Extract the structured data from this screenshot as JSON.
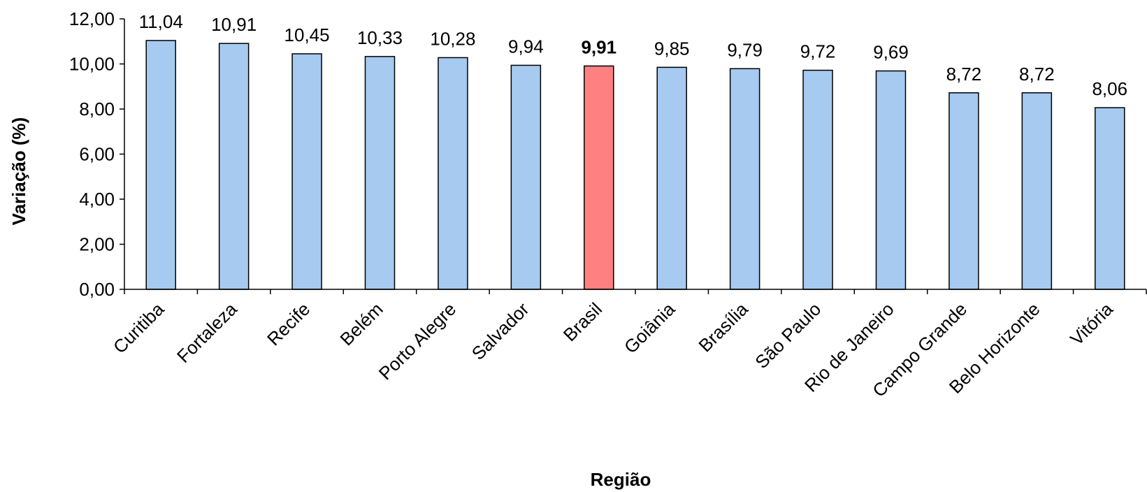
{
  "chart_data": {
    "type": "bar",
    "title": "",
    "xlabel": "Região",
    "ylabel": "Variação (%)",
    "ylim": [
      0,
      12
    ],
    "yticks": [
      "0,00",
      "2,00",
      "4,00",
      "6,00",
      "8,00",
      "10,00",
      "12,00"
    ],
    "grid": false,
    "categories": [
      "Curitiba",
      "Fortaleza",
      "Recife",
      "Belém",
      "Porto Alegre",
      "Salvador",
      "Brasil",
      "Goiânia",
      "Brasília",
      "São Paulo",
      "Rio de Janeiro",
      "Campo Grande",
      "Belo Horizonte",
      "Vitória"
    ],
    "values": [
      11.04,
      10.91,
      10.45,
      10.33,
      10.28,
      9.94,
      9.91,
      9.85,
      9.79,
      9.72,
      9.69,
      8.72,
      8.72,
      8.06
    ],
    "value_labels": [
      "11,04",
      "10,91",
      "10,45",
      "10,33",
      "10,28",
      "9,94",
      "9,91",
      "9,85",
      "9,79",
      "9,72",
      "9,69",
      "8,72",
      "8,72",
      "8,06"
    ],
    "highlight_category": "Brasil",
    "colors": {
      "bar": "#a6caf0",
      "highlight": "#ff8080",
      "outline": "#000000"
    }
  }
}
